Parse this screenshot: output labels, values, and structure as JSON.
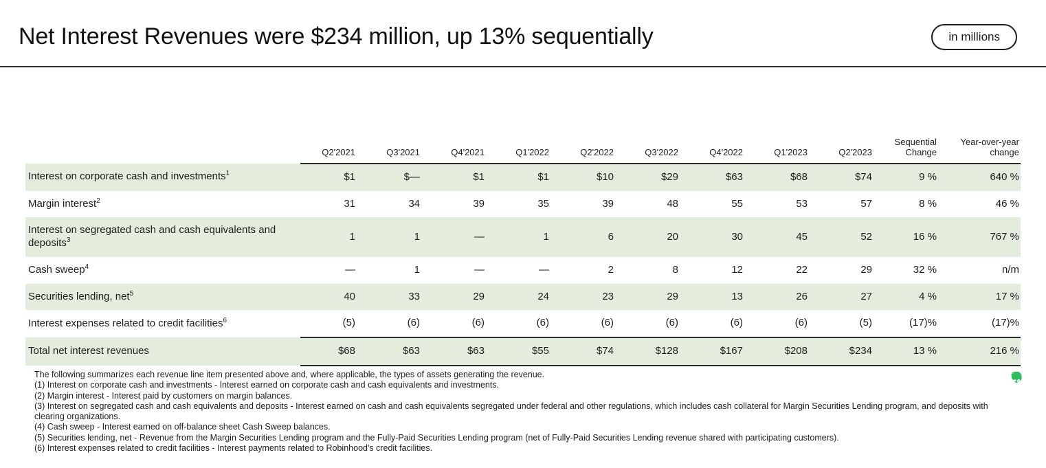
{
  "colors": {
    "row_shade": "#e4ecdd",
    "rule": "#2f2f2f",
    "text": "#1d1d1f",
    "evernote_green": "#2dbe60"
  },
  "header": {
    "title": "Net Interest Revenues were $234 million, up 13% sequentially",
    "badge": "in millions"
  },
  "table": {
    "columns": [
      "Q2'2021",
      "Q3'2021",
      "Q4'2021",
      "Q1'2022",
      "Q2'2022",
      "Q3'2022",
      "Q4'2022",
      "Q1'2023",
      "Q2'2023",
      "Sequential Change",
      "Year-over-year change"
    ],
    "rows": [
      {
        "label": "Interest on corporate cash and investments",
        "sup": "1",
        "values": [
          "$1",
          "$—",
          "$1",
          "$1",
          "$10",
          "$29",
          "$63",
          "$68",
          "$74",
          "9 %",
          "640 %"
        ]
      },
      {
        "label": "Margin interest",
        "sup": "2",
        "values": [
          "31",
          "34",
          "39",
          "35",
          "39",
          "48",
          "55",
          "53",
          "57",
          "8 %",
          "46 %"
        ]
      },
      {
        "label": "Interest on segregated cash and cash equivalents and deposits",
        "sup": "3",
        "values": [
          "1",
          "1",
          "—",
          "1",
          "6",
          "20",
          "30",
          "45",
          "52",
          "16 %",
          "767 %"
        ]
      },
      {
        "label": "Cash sweep",
        "sup": "4",
        "values": [
          "—",
          "1",
          "—",
          "—",
          "2",
          "8",
          "12",
          "22",
          "29",
          "32 %",
          "n/m"
        ]
      },
      {
        "label": "Securities lending, net",
        "sup": "5",
        "values": [
          "40",
          "33",
          "29",
          "24",
          "23",
          "29",
          "13",
          "26",
          "27",
          "4 %",
          "17 %"
        ]
      },
      {
        "label": "Interest expenses related to credit facilities",
        "sup": "6",
        "values": [
          "(5)",
          "(6)",
          "(6)",
          "(6)",
          "(6)",
          "(6)",
          "(6)",
          "(6)",
          "(5)",
          "(17)%",
          "(17)%"
        ]
      },
      {
        "label": "Total net interest revenues",
        "sup": "",
        "values": [
          "$68",
          "$63",
          "$63",
          "$55",
          "$74",
          "$128",
          "$167",
          "$208",
          "$234",
          "13 %",
          "216 %"
        ]
      }
    ]
  },
  "footnotes": [
    "The following summarizes each revenue line item presented above and, where applicable, the types of assets generating the revenue.",
    "(1) Interest on corporate cash and investments - Interest earned on corporate cash and cash equivalents and investments.",
    "(2) Margin interest - Interest paid by customers on margin balances.",
    "(3) Interest on segregated cash and cash equivalents and deposits - Interest earned on cash and cash equivalents segregated under federal and other regulations, which includes cash collateral for Margin Securities Lending program, and deposits with clearing organizations.",
    "(4) Cash sweep - Interest earned on off-balance sheet Cash Sweep balances.",
    "(5) Securities lending, net - Revenue from the Margin Securities Lending program and the Fully-Paid Securities Lending program (net of Fully-Paid Securities Lending revenue shared with participating customers).",
    "(6) Interest expenses related to credit facilities - Interest payments related to Robinhood's credit facilities."
  ]
}
